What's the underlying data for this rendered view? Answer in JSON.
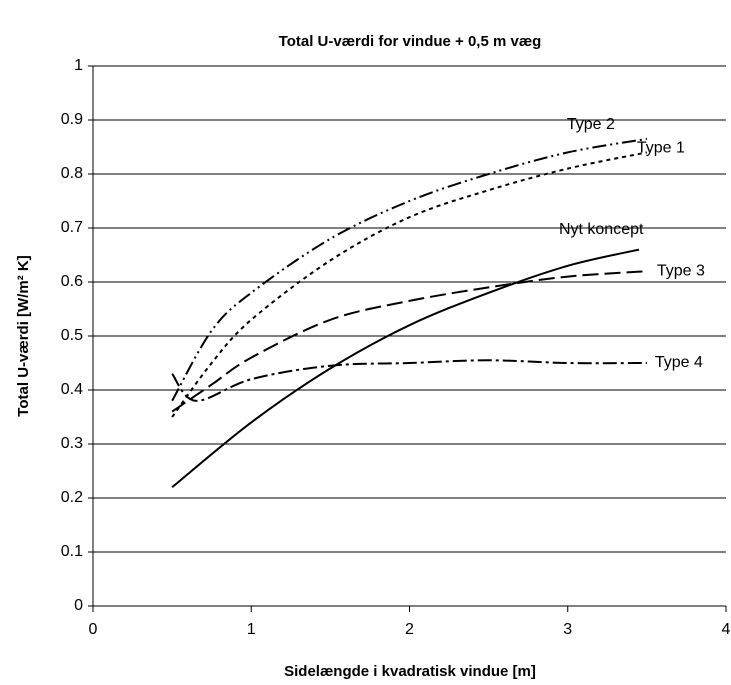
{
  "chart_data": {
    "type": "line",
    "title": "Total U-værdi for vindue + 0,5 m væg",
    "xlabel": "Sidelængde i kvadratisk vindue  [m]",
    "ylabel": "Total U-værdi  [W/m² K]",
    "xlim": [
      0,
      4
    ],
    "xticks": [
      0,
      1,
      2,
      3,
      4
    ],
    "ylim": [
      0,
      1
    ],
    "yticks": [
      0,
      0.1,
      0.2,
      0.3,
      0.4,
      0.5,
      0.6,
      0.7,
      0.8,
      0.9,
      1
    ],
    "grid": true,
    "series": [
      {
        "name": "Type 2",
        "color": "#000000",
        "dash": "14,4,2,4,2,4",
        "x": [
          0.5,
          0.75,
          1,
          1.5,
          2,
          2.5,
          3,
          3.5
        ],
        "values": [
          0.38,
          0.51,
          0.58,
          0.68,
          0.75,
          0.8,
          0.84,
          0.865
        ]
      },
      {
        "name": "Type 1",
        "color": "#000000",
        "dash": "4,4",
        "x": [
          0.5,
          0.75,
          1,
          1.5,
          2,
          2.5,
          3,
          3.5
        ],
        "values": [
          0.35,
          0.45,
          0.53,
          0.64,
          0.72,
          0.77,
          0.81,
          0.84
        ]
      },
      {
        "name": "Nyt koncept",
        "color": "#000000",
        "dash": "none",
        "x": [
          0.5,
          1,
          1.5,
          2,
          2.5,
          3,
          3.45
        ],
        "values": [
          0.22,
          0.34,
          0.44,
          0.52,
          0.58,
          0.63,
          0.66
        ]
      },
      {
        "name": "Type 3",
        "color": "#000000",
        "dash": "16,6",
        "x": [
          0.5,
          0.75,
          1,
          1.5,
          2,
          2.5,
          3,
          3.5
        ],
        "values": [
          0.36,
          0.41,
          0.46,
          0.53,
          0.565,
          0.59,
          0.61,
          0.62
        ]
      },
      {
        "name": "Type 4",
        "color": "#000000",
        "dash": "14,4,3,4",
        "x": [
          0.5,
          0.65,
          1,
          1.5,
          2,
          2.5,
          3,
          3.5
        ],
        "values": [
          0.43,
          0.38,
          0.42,
          0.445,
          0.45,
          0.455,
          0.45,
          0.45
        ]
      }
    ]
  }
}
